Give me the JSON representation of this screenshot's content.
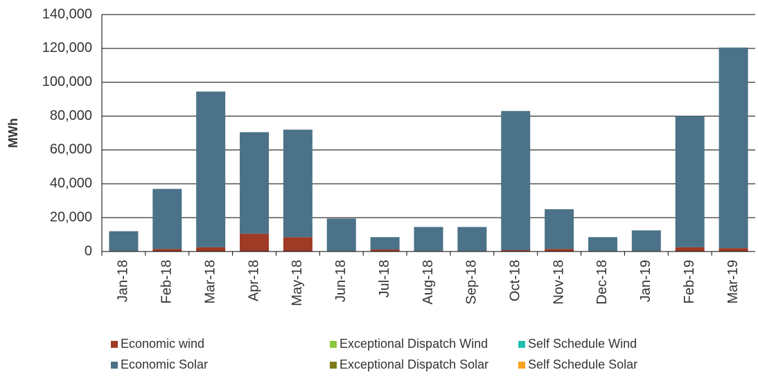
{
  "chart_data": {
    "type": "stacked_bar",
    "ylabel": "MWh",
    "categories": [
      "Jan-18",
      "Feb-18",
      "Mar-18",
      "Apr-18",
      "May-18",
      "Jun-18",
      "Jul-18",
      "Aug-18",
      "Sep-18",
      "Oct-18",
      "Nov-18",
      "Dec-18",
      "Jan-19",
      "Feb-19",
      "Mar-19"
    ],
    "series": [
      {
        "name": "Economic wind",
        "color": "#9e3a26",
        "values": [
          300,
          1500,
          2500,
          10500,
          8500,
          300,
          1200,
          300,
          300,
          800,
          1500,
          300,
          300,
          2500,
          2000
        ]
      },
      {
        "name": "Economic Solar",
        "color": "#4b7288",
        "values": [
          11700,
          35500,
          92000,
          60000,
          63500,
          19200,
          7300,
          14200,
          14200,
          82200,
          23500,
          8200,
          12200,
          77500,
          118500
        ]
      },
      {
        "name": "Exceptional Dispatch Wind",
        "color": "#8cc63f",
        "values": [
          0,
          0,
          0,
          0,
          0,
          0,
          0,
          0,
          0,
          0,
          0,
          0,
          0,
          0,
          0
        ]
      },
      {
        "name": "Exceptional Dispatch Solar",
        "color": "#7f7a1a",
        "values": [
          0,
          0,
          0,
          0,
          0,
          0,
          0,
          0,
          0,
          0,
          0,
          0,
          0,
          0,
          0
        ]
      },
      {
        "name": "Self Schedule Wind",
        "color": "#1fc0b0",
        "values": [
          0,
          0,
          0,
          0,
          0,
          0,
          0,
          0,
          0,
          0,
          0,
          0,
          0,
          0,
          0
        ]
      },
      {
        "name": "Self Schedule Solar",
        "color": "#f7a21b",
        "values": [
          0,
          0,
          0,
          0,
          0,
          0,
          0,
          0,
          0,
          0,
          0,
          0,
          0,
          0,
          0
        ]
      }
    ],
    "ylim": [
      0,
      140000
    ],
    "yticks": [
      0,
      {
        "value": 20000,
        "label": "20,000"
      },
      {
        "value": 40000,
        "label": "40,000"
      },
      {
        "value": 60000,
        "label": "60,000"
      },
      {
        "value": 80000,
        "label": "80,000"
      },
      {
        "value": 100000,
        "label": "100,000"
      },
      {
        "value": 120000,
        "label": "120,000"
      },
      {
        "value": 140000,
        "label": "140,000"
      }
    ],
    "grid": true
  }
}
